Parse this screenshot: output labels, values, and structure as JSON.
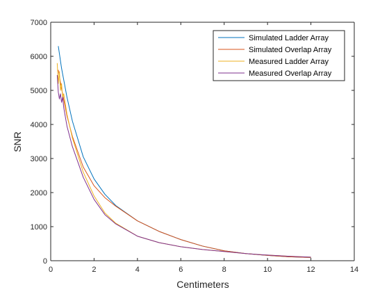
{
  "chart_data": {
    "type": "line",
    "title": "",
    "xlabel": "Centimeters",
    "ylabel": "SNR",
    "xlim": [
      0,
      14
    ],
    "ylim": [
      0,
      7000
    ],
    "xticks": [
      0,
      2,
      4,
      6,
      8,
      10,
      12,
      14
    ],
    "yticks": [
      0,
      1000,
      2000,
      3000,
      4000,
      5000,
      6000,
      7000
    ],
    "grid": false,
    "legend_position": "top-right",
    "series": [
      {
        "name": "Simulated Ladder Array",
        "color": "#0072BD",
        "x": [
          0.35,
          0.5,
          0.75,
          1.0,
          1.5,
          2.0,
          2.5,
          3.0,
          4.0,
          5.0,
          6.0,
          7.0,
          8.0,
          9.0,
          10.0,
          11.0,
          12.0
        ],
        "y": [
          6300,
          5650,
          4800,
          4100,
          3050,
          2400,
          1950,
          1620,
          1170,
          860,
          620,
          430,
          290,
          210,
          155,
          115,
          95
        ]
      },
      {
        "name": "Simulated Overlap Array",
        "color": "#D95319",
        "x": [
          0.35,
          0.5,
          0.75,
          1.0,
          1.5,
          2.0,
          2.5,
          3.0,
          4.0,
          5.0,
          6.0,
          7.0,
          8.0,
          9.0,
          10.0,
          11.0,
          12.0
        ],
        "y": [
          5600,
          5050,
          4250,
          3650,
          2750,
          2200,
          1850,
          1600,
          1170,
          860,
          620,
          430,
          290,
          210,
          155,
          115,
          95
        ]
      },
      {
        "name": "Measured Ladder Array",
        "color": "#EDB120",
        "x": [
          0.3,
          0.35,
          0.4,
          0.45,
          0.5,
          0.55,
          0.6,
          0.75,
          1.0,
          1.5,
          2.0,
          2.5,
          3.0,
          4.0,
          5.0,
          6.0,
          7.0,
          8.0,
          9.0,
          10.0,
          11.0,
          12.0
        ],
        "y": [
          5800,
          5200,
          5550,
          5000,
          5200,
          4800,
          4900,
          4300,
          3600,
          2600,
          1900,
          1400,
          1100,
          720,
          530,
          410,
          330,
          270,
          210,
          165,
          130,
          105
        ]
      },
      {
        "name": "Measured Overlap Array",
        "color": "#7E2F8E",
        "x": [
          0.3,
          0.35,
          0.4,
          0.45,
          0.5,
          0.55,
          0.6,
          0.75,
          1.0,
          1.5,
          2.0,
          2.5,
          3.0,
          4.0,
          5.0,
          6.0,
          7.0,
          8.0,
          9.0,
          10.0,
          11.0,
          12.0
        ],
        "y": [
          5450,
          4950,
          4750,
          4900,
          4650,
          4800,
          4500,
          3950,
          3350,
          2450,
          1800,
          1350,
          1080,
          720,
          530,
          410,
          330,
          270,
          210,
          165,
          130,
          105
        ]
      }
    ]
  }
}
